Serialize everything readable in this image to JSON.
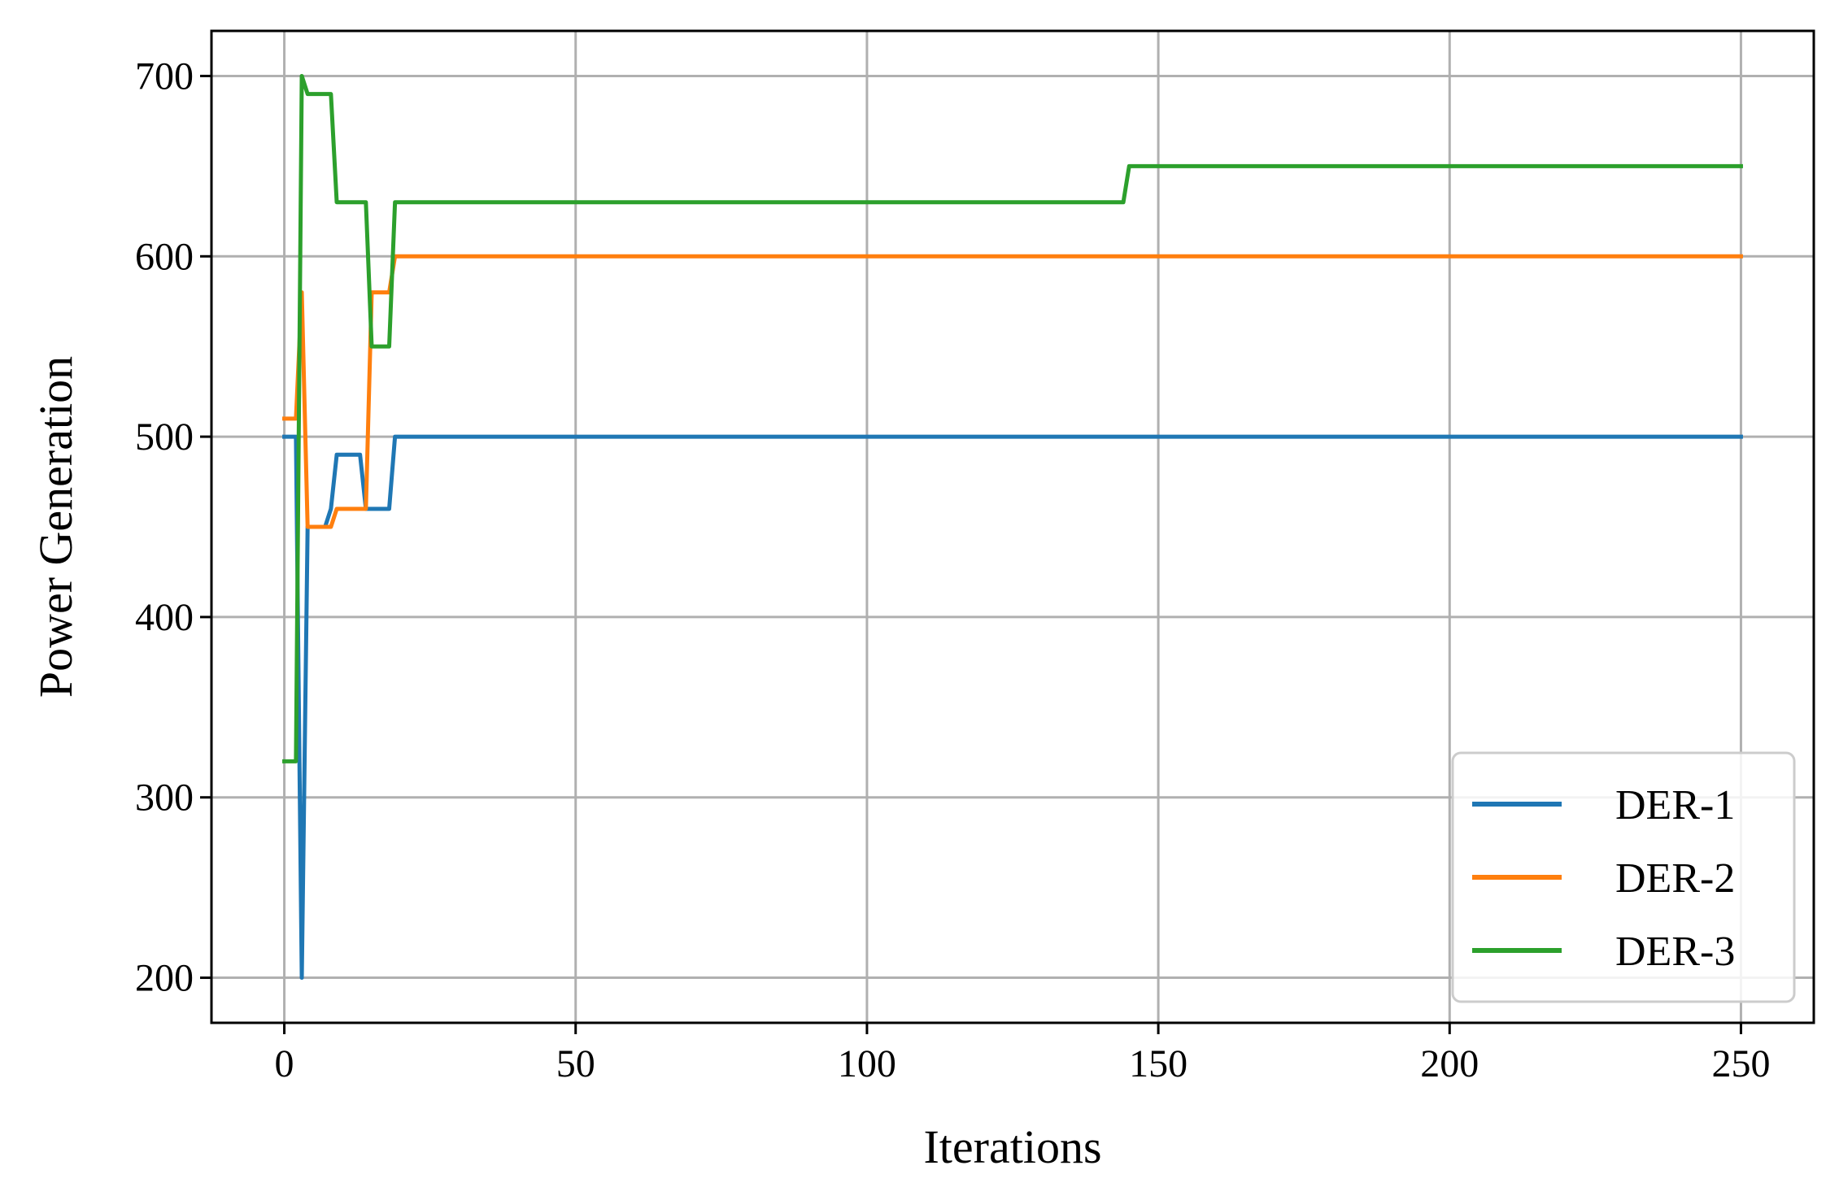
{
  "chart_data": {
    "type": "line",
    "title": "",
    "xlabel": "Iterations",
    "ylabel": "Power Generation",
    "xlim": [
      -12.5,
      262.5
    ],
    "ylim": [
      175,
      725
    ],
    "xticks": [
      0,
      50,
      100,
      150,
      200,
      250
    ],
    "yticks": [
      200,
      300,
      400,
      500,
      600,
      700
    ],
    "grid": true,
    "legend_position": "lower-right",
    "series": [
      {
        "name": "DER-1",
        "color": "#1f77b4",
        "x": [
          0,
          1,
          2,
          3,
          4,
          5,
          6,
          7,
          8,
          9,
          10,
          13,
          14,
          15,
          18,
          19,
          250
        ],
        "y": [
          500,
          500,
          500,
          200,
          450,
          450,
          450,
          450,
          460,
          490,
          490,
          490,
          460,
          460,
          460,
          500,
          500
        ]
      },
      {
        "name": "DER-2",
        "color": "#ff7f0e",
        "x": [
          0,
          1,
          2,
          3,
          4,
          5,
          6,
          7,
          8,
          9,
          10,
          13,
          14,
          15,
          18,
          19,
          250
        ],
        "y": [
          510,
          510,
          510,
          580,
          450,
          450,
          450,
          450,
          450,
          460,
          460,
          460,
          460,
          580,
          580,
          600,
          600
        ]
      },
      {
        "name": "DER-3",
        "color": "#2ca02c",
        "x": [
          0,
          1,
          2,
          3,
          4,
          5,
          6,
          7,
          8,
          9,
          10,
          13,
          14,
          15,
          18,
          19,
          144,
          145,
          250
        ],
        "y": [
          320,
          320,
          320,
          700,
          690,
          690,
          690,
          690,
          690,
          630,
          630,
          630,
          630,
          550,
          550,
          630,
          630,
          650,
          650
        ]
      }
    ]
  }
}
